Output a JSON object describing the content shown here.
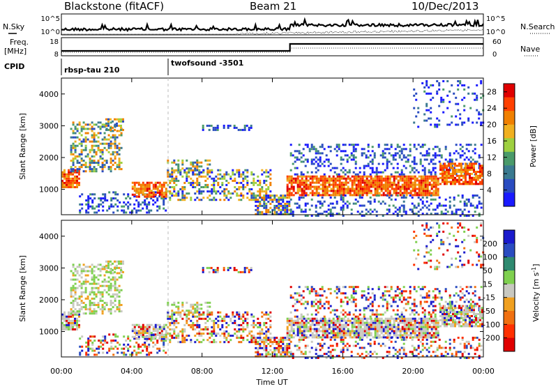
{
  "header": {
    "station": "Blackstone (fitACF)",
    "beam": "Beam 21",
    "date": "10/Dec/2013"
  },
  "labels": {
    "nsky": "N.Sky",
    "nsearch": "N.Search",
    "freq_line1": "Freq.",
    "freq_line2": "[MHz]",
    "nave": "Nave",
    "cpid": "CPID",
    "cpid_first": "rbsp-tau 210",
    "cpid_second": "twofsound -3501"
  },
  "noise_panel": {
    "left_ticks": [
      "10^5",
      "10^0"
    ],
    "right_ticks": [
      "10^5",
      "10^0"
    ]
  },
  "freq_panel": {
    "left_ticks": [
      "18",
      "8"
    ],
    "right_ticks": [
      "60",
      "0"
    ]
  },
  "colors": {
    "power_scale": [
      "#1a1aff",
      "#2a4cc0",
      "#3a7a90",
      "#4a9a6a",
      "#9ed040",
      "#f0b020",
      "#f08000",
      "#ff4000",
      "#e00000"
    ],
    "velocity_scale": [
      "#1a1acc",
      "#2a4cc0",
      "#2f8a70",
      "#7fd04f",
      "#c8c8c0",
      "#f0a020",
      "#f07010",
      "#ff3000",
      "#e00000"
    ]
  },
  "chart_data": [
    {
      "type": "heatmap",
      "title": "Power",
      "xlabel": "",
      "ylabel": "Slant Range [km]",
      "x_ticks": [
        "00:00",
        "04:00",
        "08:00",
        "12:00",
        "16:00",
        "20:00",
        "00:00"
      ],
      "y_ticks": [
        "1000",
        "2000",
        "3000",
        "4000"
      ],
      "ylim": [
        200,
        4500
      ],
      "xlim_hours": [
        0,
        24
      ],
      "colorbar": {
        "label": "Power [dB]",
        "ticks": [
          "4",
          "8",
          "12",
          "16",
          "20",
          "24",
          "28"
        ],
        "range": [
          0,
          30
        ]
      }
    },
    {
      "type": "heatmap",
      "title": "Velocity",
      "xlabel": "Time UT",
      "ylabel": "Slant Range [km]",
      "x_ticks": [
        "00:00",
        "04:00",
        "08:00",
        "12:00",
        "16:00",
        "20:00",
        "00:00"
      ],
      "y_ticks": [
        "1000",
        "2000",
        "3000",
        "4000"
      ],
      "ylim": [
        200,
        4500
      ],
      "xlim_hours": [
        0,
        24
      ],
      "colorbar": {
        "label": "Velocity [m s^-1]",
        "ticks": [
          "200",
          "100",
          "50",
          "15",
          "-15",
          "-50",
          "-100",
          "-200"
        ],
        "range": [
          -250,
          250
        ]
      }
    }
  ]
}
